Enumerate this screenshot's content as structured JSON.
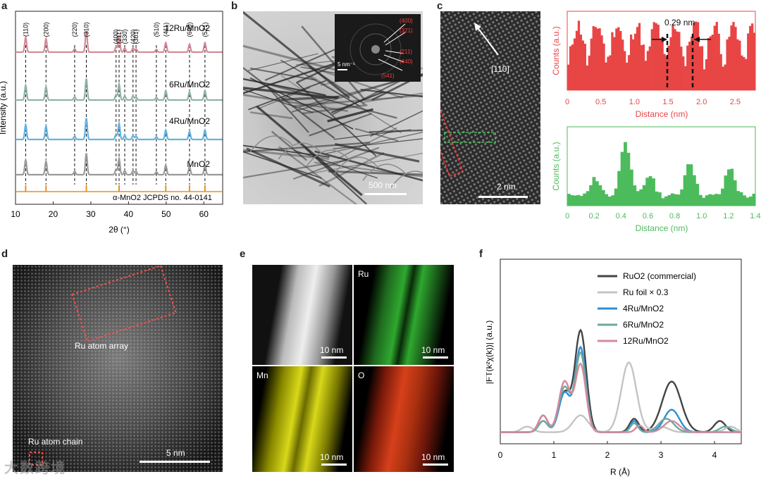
{
  "panels": {
    "a": {
      "label": "a",
      "xlabel": "2θ (°)",
      "ylabel": "Intensity (a.u.)",
      "xticks": [
        "10",
        "20",
        "30",
        "40",
        "50",
        "60"
      ],
      "series": [
        "12Ru/MnO2",
        "6Ru/MnO2",
        "4Ru/MnO2",
        "MnO2"
      ],
      "reference_label": "α-MnO2 JCPDS no. 44-0141",
      "peak_labels": [
        "(110)",
        "(200)",
        "(220)",
        "(310)",
        "(400)",
        "(211)",
        "(330)",
        "(420)",
        "(301)",
        "(510)",
        "(411)",
        "(600)",
        "(521)"
      ],
      "peak_positions": [
        12.7,
        18.1,
        25.7,
        28.8,
        36.7,
        37.5,
        39.0,
        41.2,
        42.0,
        47.4,
        49.9,
        56.2,
        60.3
      ],
      "reference_positions": [
        12.7,
        18.1,
        28.8,
        37.5,
        49.9,
        56.2,
        60.3
      ],
      "colors": {
        "12Ru/MnO2": "#d48a97",
        "6Ru/MnO2": "#8fb3a8",
        "4Ru/MnO2": "#62b3e0",
        "MnO2": "#9a9a9a",
        "reference": "#e8901c"
      }
    },
    "b": {
      "label": "b",
      "scalebar": "500 nm",
      "inset_scalebar": "5 nm⁻¹",
      "inset_labels": [
        "(400)",
        "(321)",
        "(211)",
        "(440)",
        "(541)"
      ]
    },
    "c": {
      "label": "c",
      "direction": "[110]",
      "scalebar": "2 nm",
      "spacing": "0.29 nm",
      "top_plot": {
        "xlabel": "Distance (nm)",
        "ylabel": "Counts (a.u.)",
        "xticks": [
          "0",
          "0.5",
          "1.0",
          "1.5",
          "2.0",
          "2.5"
        ],
        "color": "#e84545"
      },
      "bottom_plot": {
        "xlabel": "Distance (nm)",
        "ylabel": "Counts (a.u.)",
        "xticks": [
          "0",
          "0.2",
          "0.4",
          "0.6",
          "0.8",
          "1.0",
          "1.2",
          "1.4"
        ],
        "color": "#4cbb5c"
      }
    },
    "d": {
      "label": "d",
      "array_label": "Ru atom array",
      "chain_label": "Ru atom chain",
      "scalebar": "5 nm"
    },
    "e": {
      "label": "e",
      "maps": [
        {
          "name": "",
          "scalebar": "10 nm"
        },
        {
          "name": "Ru",
          "scalebar": "10 nm"
        },
        {
          "name": "Mn",
          "scalebar": "10 nm"
        },
        {
          "name": "O",
          "scalebar": "10 nm"
        }
      ]
    },
    "f": {
      "label": "f",
      "xlabel": "R (Å)",
      "ylabel": "|FT(k²χ(k))| (a.u.)",
      "xticks": [
        "0",
        "1",
        "2",
        "3",
        "4"
      ],
      "legend": [
        {
          "name": "RuO2 (commercial)",
          "color": "#444444"
        },
        {
          "name": "Ru foil × 0.3",
          "color": "#c4c4c4"
        },
        {
          "name": "4Ru/MnO2",
          "color": "#2b8fd6"
        },
        {
          "name": "6Ru/MnO2",
          "color": "#6aa9a0"
        },
        {
          "name": "12Ru/MnO2",
          "color": "#d48a9a"
        }
      ]
    }
  },
  "watermark": "大数跨境"
}
